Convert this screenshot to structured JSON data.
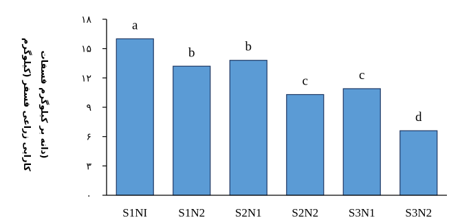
{
  "chart_data": {
    "type": "bar",
    "categories": [
      "S1NI",
      "S1N2",
      "S2N1",
      "S2N2",
      "S3N1",
      "S3N2"
    ],
    "values": [
      16,
      13.2,
      13.8,
      10.3,
      10.9,
      6.6
    ],
    "data_labels": [
      "a",
      "b",
      "b",
      "c",
      "c",
      "d"
    ],
    "ylim": [
      0,
      18
    ],
    "yticks": [
      0,
      3,
      6,
      9,
      12,
      15,
      18
    ],
    "ytick_labels": [
      "۰",
      "۳",
      "۶",
      "۹",
      "۱۲",
      "۱۵",
      "۱۸"
    ],
    "ylabel_lines": [
      "کارایی زراعی فسفر (کیلوگرم",
      "دانه بر کیلوگرم فسفات)"
    ],
    "xlabel": "",
    "title": "",
    "grid": false,
    "bar_color": "#5b9bd5",
    "bar_edge_color": "#1f3864"
  }
}
